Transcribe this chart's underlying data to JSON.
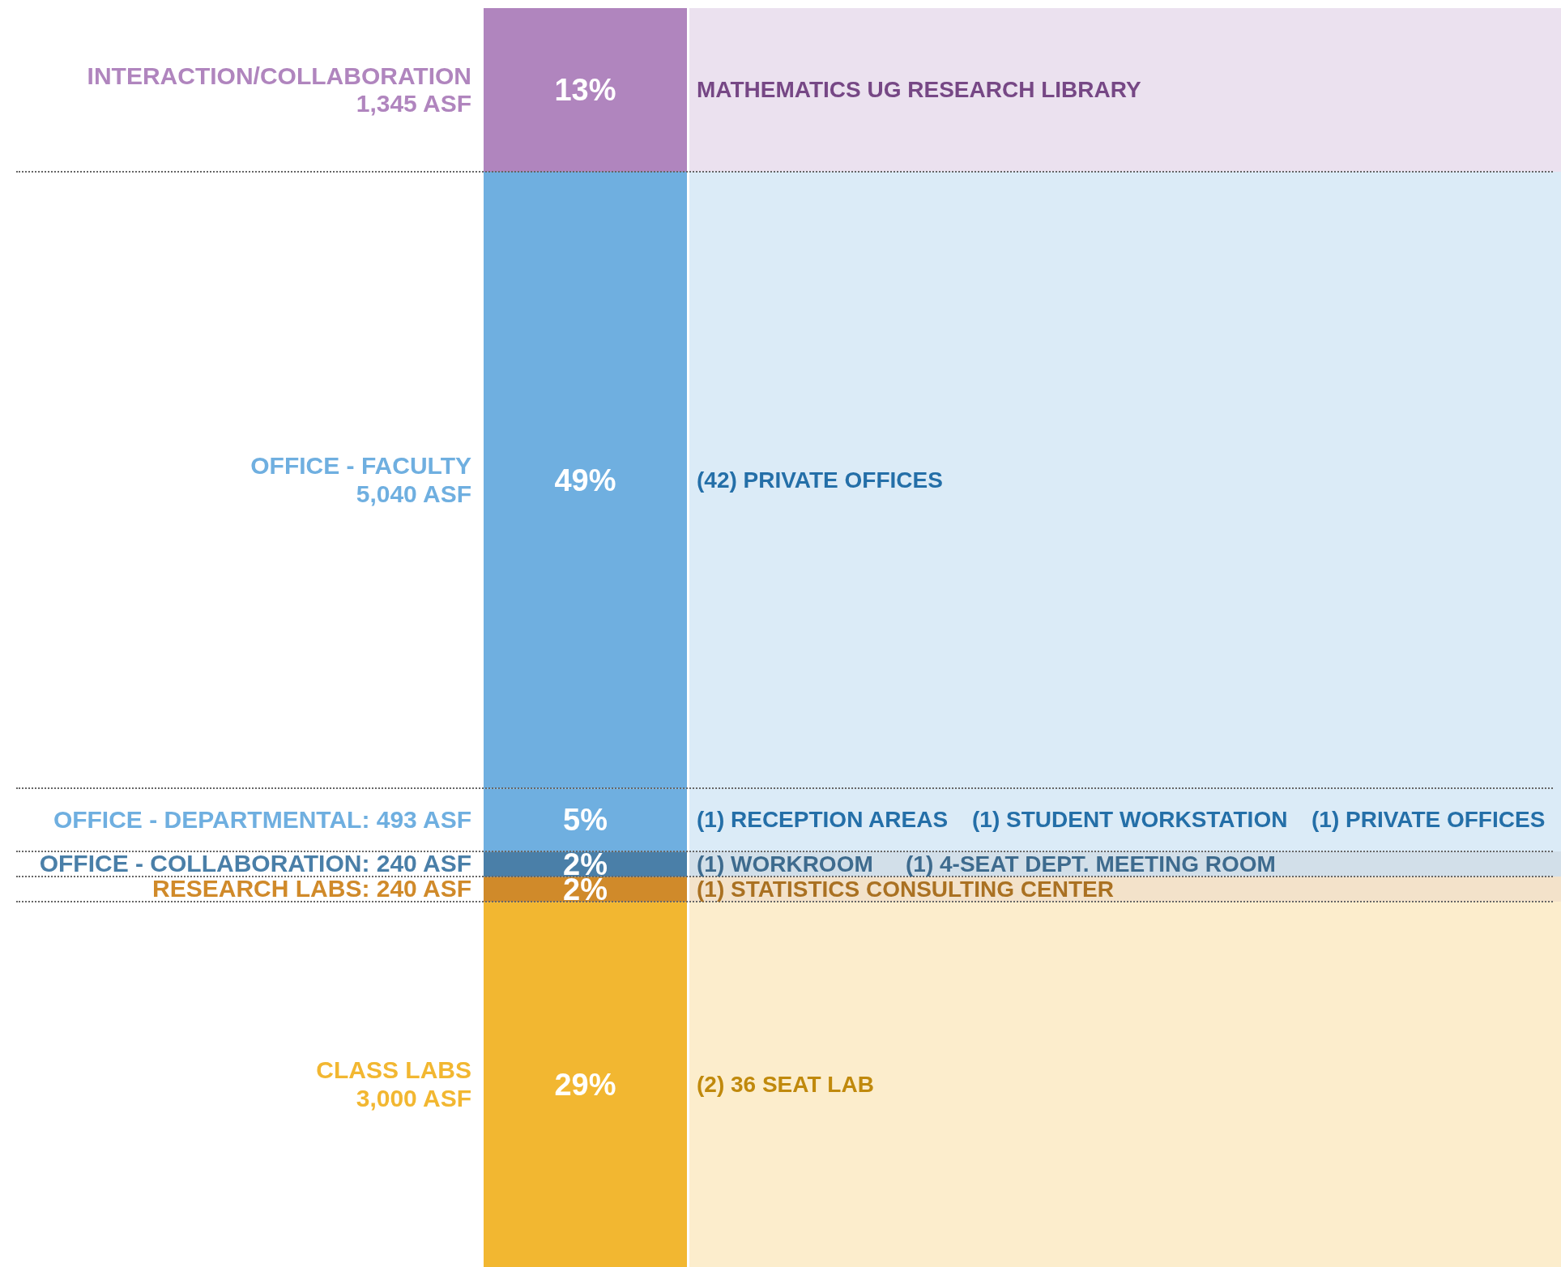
{
  "chart_data": {
    "type": "bar",
    "stacked": true,
    "categories": [
      null
    ],
    "series": [
      {
        "name": "CLASS LABS\n3,000 ASF",
        "color": "#f2b731",
        "values": [
          29
        ],
        "value_labels": [
          "29%"
        ]
      },
      {
        "name": "RESEARCH LABS: 240 ASF",
        "color": "#d08a2a",
        "values": [
          2
        ],
        "value_labels": [
          "2%"
        ]
      },
      {
        "name": "OFFICE - COLLABORATION: 240 ASF",
        "color": "#4a7fa8",
        "values": [
          2
        ],
        "value_labels": [
          "2%"
        ]
      },
      {
        "name": "OFFICE - DEPARTMENTAL: 493 ASF",
        "color": "#6fafe0",
        "values": [
          5
        ],
        "value_labels": [
          "5%"
        ]
      },
      {
        "name": "OFFICE - FACULTY\n5,040 ASF",
        "color": "#6fafe0",
        "values": [
          49
        ],
        "value_labels": [
          "49%"
        ]
      },
      {
        "name": "INTERACTION/COLLABORATION\n1,345 ASF",
        "color": "#b085be",
        "values": [
          13
        ],
        "value_labels": [
          "13%"
        ]
      }
    ],
    "annotations": [
      "MATHEMATICS UG RESEARCH LIBRARY",
      "(42) PRIVATE OFFICES",
      "(1) RECEPTION AREAS",
      "(1) STUDENT WORKSTATION",
      "(1) PRIVATE OFFICES",
      "(1) WORKROOM",
      "(1) 4-SEAT DEPT. MEETING ROOM",
      "(1) STATISTICS CONSULTING CENTER",
      "(2) 36 SEAT LAB"
    ],
    "legend": false
  }
}
